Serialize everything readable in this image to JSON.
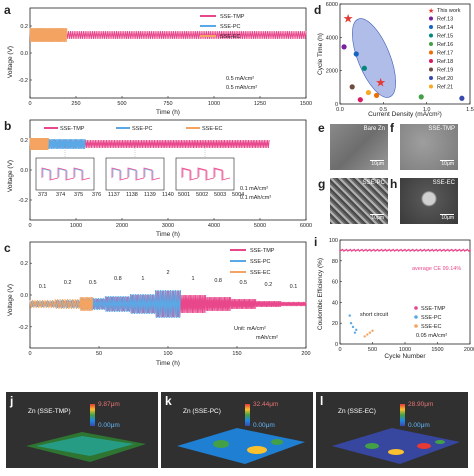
{
  "panels": {
    "a": {
      "label": "a",
      "ylabel": "Voltage (V)",
      "xlabel": "Time (h)",
      "xticks": [
        "0",
        "250",
        "500",
        "750",
        "1000",
        "1250",
        "1500"
      ],
      "yticks": [
        "0.2",
        "0.0",
        "-0.2"
      ],
      "legend": [
        "SSE-TMP",
        "SSE-PC",
        "SSE-EC"
      ],
      "note1": "0.5 mA/cm²",
      "note2": "0.5 mAh/cm²"
    },
    "b": {
      "label": "b",
      "ylabel": "Voltage (V)",
      "xlabel": "Time (h)",
      "xticks": [
        "0",
        "1000",
        "2000",
        "3000",
        "4000",
        "5000",
        "6000"
      ],
      "yticks": [
        "0.2",
        "0.0",
        "-0.2"
      ],
      "legend": [
        "SSE-TMP",
        "SSE-PC",
        "SSE-EC"
      ],
      "note1": "0.1 mA/cm²",
      "note2": "0.1 mAh/cm²",
      "insets": [
        [
          "373",
          "374",
          "375",
          "376"
        ],
        [
          "1137",
          "1138",
          "1139",
          "1140"
        ],
        [
          "5001",
          "5002",
          "5003",
          "5004"
        ]
      ]
    },
    "c": {
      "label": "c",
      "ylabel": "Voltage (V)",
      "xlabel": "Time (h)",
      "xticks": [
        "0",
        "50",
        "100",
        "150",
        "200"
      ],
      "yticks": [
        "0.2",
        "0.0",
        "-0.2"
      ],
      "legend": [
        "SSE-TMP",
        "SSE-PC",
        "SSE-EC"
      ],
      "unit1": "Unit: mA/cm²",
      "unit2": "mAh/cm²",
      "rates": [
        "0.1",
        "0.2",
        "0.5",
        "0.8",
        "1",
        "2",
        "1",
        "0.8",
        "0.5",
        "0.2",
        "0.1"
      ]
    },
    "d": {
      "label": "d",
      "ylabel": "Cycle Time (h)",
      "xlabel": "Current Density (mA/cm²)",
      "xticks": [
        "0.0",
        "0.5",
        "1.0",
        "1.5"
      ],
      "yticks": [
        "0",
        "2000",
        "4000",
        "6000"
      ],
      "legend": [
        "This work",
        "Ref.13",
        "Ref.14",
        "Ref.15",
        "Ref.16",
        "Ref.17",
        "Ref.18",
        "Ref.19",
        "Ref.20",
        "Ref.21"
      ]
    },
    "i": {
      "label": "i",
      "ylabel": "Coulombic Efficiency (%)",
      "xlabel": "Cycle Number",
      "xticks": [
        "0",
        "500",
        "1000",
        "1500",
        "2000"
      ],
      "yticks": [
        "0",
        "20",
        "40",
        "60",
        "80",
        "100"
      ],
      "legend": [
        "SSE-TMP",
        "SSE-PC",
        "SSE-EC"
      ],
      "note": "0.05 mA/cm²",
      "avg": "average CE 99.14%",
      "short": "short circuit"
    }
  },
  "sem": [
    {
      "label": "e",
      "caption": "Bare Zn",
      "scale": "10μm"
    },
    {
      "label": "f",
      "caption": "SSE-TMP",
      "scale": "10μm"
    },
    {
      "label": "g",
      "caption": "SSE-PC",
      "scale": "10μm"
    },
    {
      "label": "h",
      "caption": "SSE-EC",
      "scale": "10μm"
    }
  ],
  "topo": [
    {
      "label": "j",
      "title": "Zn (SSE-TMP)",
      "max": "9.87μm",
      "min": "0.00μm"
    },
    {
      "label": "k",
      "title": "Zn (SSE-PC)",
      "max": "32.44μm",
      "min": "0.00μm"
    },
    {
      "label": "l",
      "title": "Zn (SSE-EC)",
      "max": "28.90μm",
      "min": "0.00μm"
    }
  ],
  "colors": {
    "tmp": "#e8478b",
    "pc": "#5aa9e6",
    "ec": "#f4a460",
    "ellipse": "#6f86d6"
  },
  "chart_data": [
    {
      "type": "line",
      "panel": "a",
      "xlabel": "Time (h)",
      "ylabel": "Voltage (V)",
      "xlim": [
        0,
        1500
      ],
      "ylim": [
        -0.3,
        0.3
      ],
      "series": [
        {
          "name": "SSE-TMP",
          "x": [
            0,
            1500
          ],
          "amplitude": [
            0.03,
            0.03
          ]
        },
        {
          "name": "SSE-PC",
          "x": [
            0,
            180
          ],
          "amplitude": [
            0.04,
            0.06
          ]
        },
        {
          "name": "SSE-EC",
          "x": [
            0,
            200
          ],
          "amplitude": [
            0.05,
            0.07
          ]
        }
      ]
    },
    {
      "type": "line",
      "panel": "b",
      "xlabel": "Time (h)",
      "ylabel": "Voltage (V)",
      "xlim": [
        0,
        6000
      ],
      "ylim": [
        -0.3,
        0.3
      ],
      "series": [
        {
          "name": "SSE-TMP",
          "x": [
            0,
            5200
          ],
          "amplitude": [
            0.03,
            0.03
          ]
        },
        {
          "name": "SSE-PC",
          "x": [
            0,
            1200
          ],
          "amplitude": [
            0.04,
            0.05
          ]
        },
        {
          "name": "SSE-EC",
          "x": [
            0,
            400
          ],
          "amplitude": [
            0.05,
            0.06
          ]
        }
      ]
    },
    {
      "type": "line",
      "panel": "c",
      "xlabel": "Time (h)",
      "ylabel": "Voltage (V)",
      "xlim": [
        0,
        220
      ],
      "ylim": [
        -0.3,
        0.3
      ],
      "series": [
        {
          "name": "SSE-TMP",
          "x": [
            0,
            220
          ]
        },
        {
          "name": "SSE-PC",
          "x": [
            0,
            120
          ]
        },
        {
          "name": "SSE-EC",
          "x": [
            0,
            50
          ]
        }
      ]
    },
    {
      "type": "scatter",
      "panel": "d",
      "xlabel": "Current Density (mA/cm²)",
      "ylabel": "Cycle Time (h)",
      "xlim": [
        0,
        1.6
      ],
      "ylim": [
        0,
        7000
      ],
      "points": [
        {
          "name": "This work",
          "x": 0.1,
          "y": 6000
        },
        {
          "name": "This work",
          "x": 0.5,
          "y": 1500
        },
        {
          "name": "Ref.13",
          "x": 0.05,
          "y": 4000
        },
        {
          "name": "Ref.14",
          "x": 0.2,
          "y": 3500
        },
        {
          "name": "Ref.15",
          "x": 0.3,
          "y": 2500
        },
        {
          "name": "Ref.16",
          "x": 1.0,
          "y": 500
        },
        {
          "name": "Ref.17",
          "x": 0.45,
          "y": 600
        },
        {
          "name": "Ref.18",
          "x": 0.25,
          "y": 300
        },
        {
          "name": "Ref.19",
          "x": 0.15,
          "y": 1200
        },
        {
          "name": "Ref.20",
          "x": 1.5,
          "y": 400
        },
        {
          "name": "Ref.21",
          "x": 0.35,
          "y": 800
        }
      ]
    },
    {
      "type": "scatter",
      "panel": "i",
      "xlabel": "Cycle Number",
      "ylabel": "Coulombic Efficiency (%)",
      "xlim": [
        0,
        2000
      ],
      "ylim": [
        0,
        110
      ],
      "series": [
        {
          "name": "SSE-TMP",
          "x": [
            0,
            2000
          ],
          "y": [
            99.14,
            99.14
          ]
        },
        {
          "name": "SSE-PC",
          "x": [
            150,
            250
          ],
          "y": [
            30,
            15
          ]
        },
        {
          "name": "SSE-EC",
          "x": [
            380,
            500
          ],
          "y": [
            8,
            14
          ]
        }
      ]
    }
  ]
}
